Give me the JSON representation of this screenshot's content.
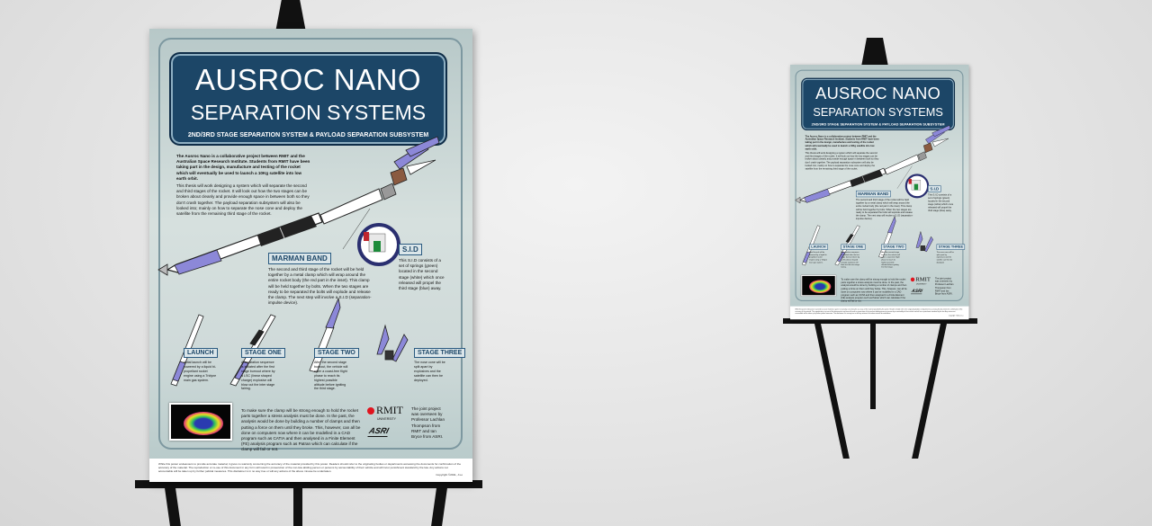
{
  "poster": {
    "title_line1": "AUSROC NANO",
    "title_line2": "SEPARATION SYSTEMS",
    "subtitle": "2ND/3RD STAGE SEPARATION SYSTEM & PAYLOAD SEPARATION SUBSYSTEM",
    "intro_bold": "The Ausroc Nano is a collaborative project between RMIT and the Australian Space Research Institute. Students from RMIT have been taking part in the design, manufacture and testing of the rocket which will eventually be used to launch a 10Kg satellite into low earth orbit.",
    "intro": "This thesis will work designing a system which will separate the second and third stages of the rocket. It will look out how the two stages can be broken about cleanly and provide enough space in between both so they don't crash together. The payload separation subsystem will also be looked into; mainly on how to separate the nose cone and deploy the satellite from the remaining third stage of the rocket.",
    "marman_label": "MARMAN BAND",
    "marman_text": "The second and third stage of the rocket will be held together by a metal clamp which will wrap around the entire rocket body (the red part in the inset). This clamp will be held together by bolts. When the two stages are ready to be separated the bolts will explode and release the clamp. The next step will involve a S.I.D (separation-impulse device).",
    "sid_label": "S.I.D",
    "sid_text": "This S.I.D consists of a set of springs (green) located in the second stage (white) which once released will propel the third stage (blue) away.",
    "stages": [
      {
        "label": "LAUNCH",
        "text": "Initial launch will be powered by a liquid bi-propellant rocket engine using a Tridyne main gas system."
      },
      {
        "label": "STAGE ONE",
        "text": "A separation sequence is initiated after the first stage burnout where by a LSC (linear shaped charge) explosive will blow out the inter stage fairing."
      },
      {
        "label": "STAGE TWO",
        "text": "After the second stage burnout, the vehicle will enter a coast-free flight phase to reach its highest possible altitude before igniting the third stage."
      },
      {
        "label": "STAGE THREE",
        "text": "The nose cone will be split apart by explosives and the satellite can then be deployed."
      }
    ],
    "analysis_text": "To make sure the clamp will be strong enough to hold the rocket parts together a stress analysis must be done. In the past, the analysis would be done by building a number of clamps and then putting a force on them until they broke. This, however, can all be done on computers now where it can be modelled in a CAD program such as CATIA and then analysed in a Finite Element (FE) analysis program such as Patran which can calculate if the clamp will fail or not.",
    "rmit_logo": "RMIT",
    "rmit_sub": "UNIVERSITY",
    "asri_logo": "ASRI",
    "joint_text": "The joint project was overseen by Professor Lachlan Thompson from RMIT and Ian Bryce from ASRI.",
    "disclaimer": "While this poster endeavours to provide accurate material, it gives no warranty concerning the accuracy of the material provided by this poster. Readers should refer to the originating bodies or departments accessing the documents for confirmation of the accuracy of the material. The reproduction or re-use of this document in any form will result in prosecution of the non-law abiding person or persons by accountability of their vehicle and will incur punishment standard by the law. Any actions not accountable will be taken up by further judicial measures. This disclaimer is in no way true or will any actions of the above misuse be undertaken.",
    "copyright": "Copyright ©2011, J.Lo"
  },
  "colors": {
    "title_bg": "#1c4667",
    "label_text": "#1c4667",
    "rocket_accent": "#8c88d8",
    "rmit_red": "#e0141e"
  }
}
